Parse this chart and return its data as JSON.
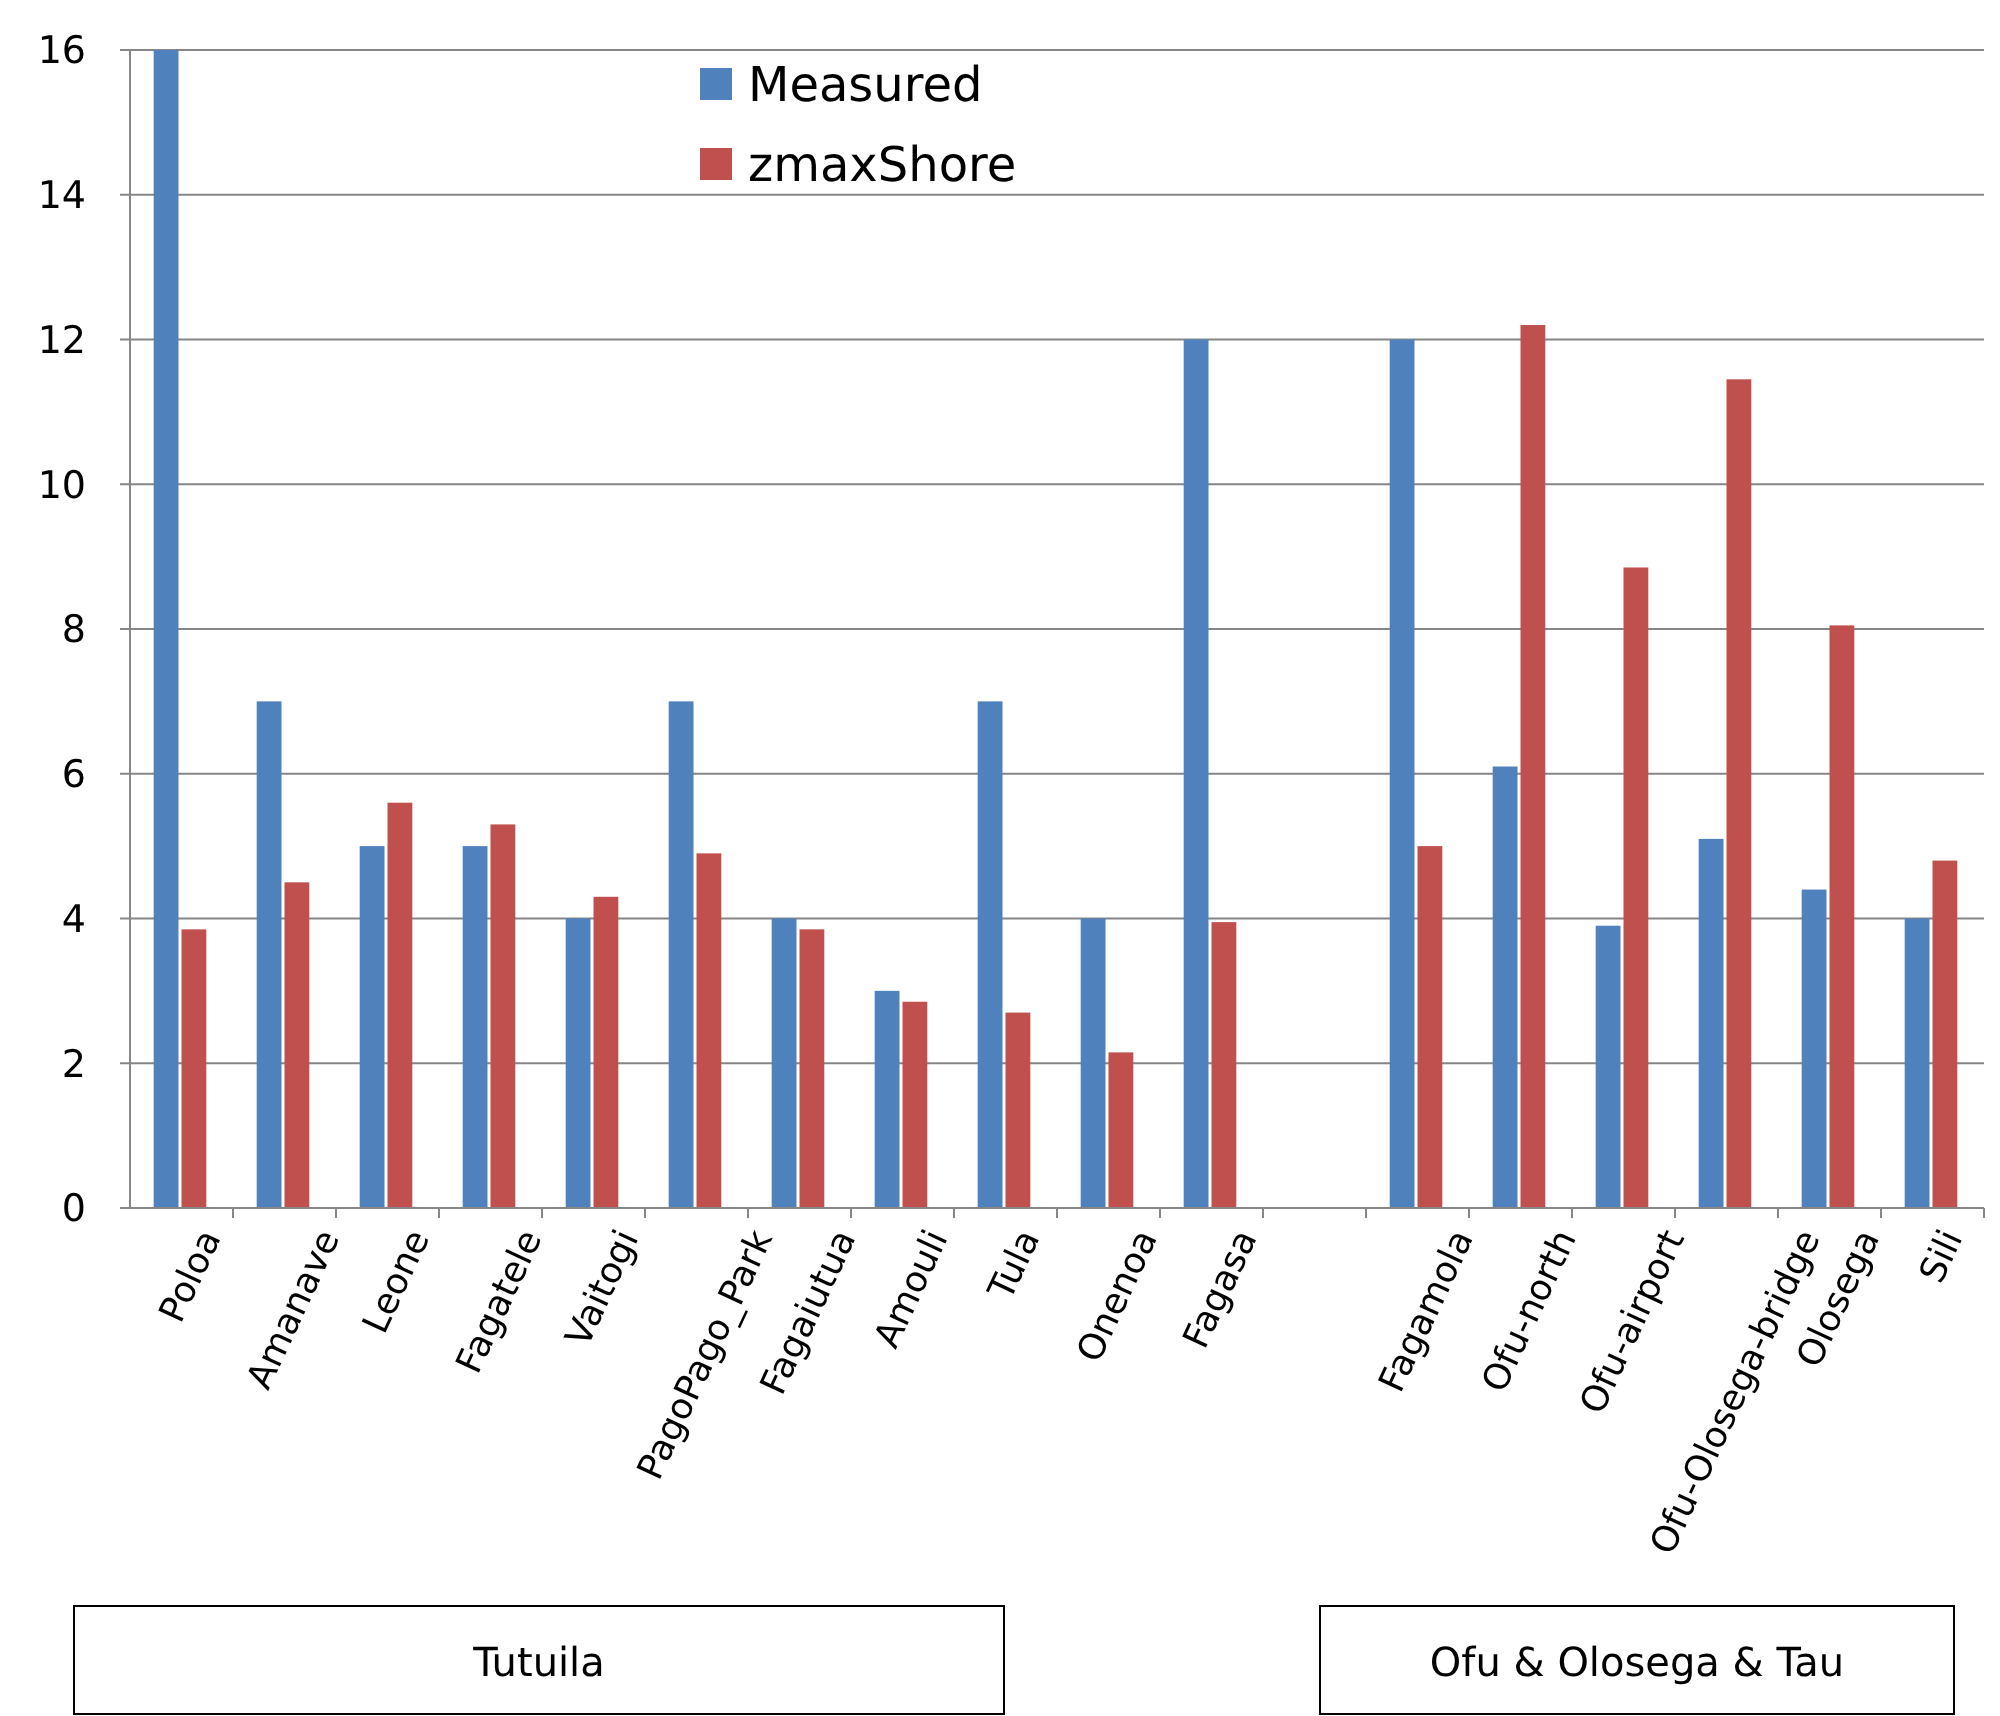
{
  "chart_data": {
    "type": "bar",
    "categories": [
      "Poloa",
      "Amanave",
      "Leone",
      "Fagatele",
      "Vaitogi",
      "PagoPago_Park",
      "Fagaiutua",
      "Amouli",
      "Tula",
      "Onenoa",
      "Fagasa",
      null,
      "Fagamola",
      "Ofu-north",
      "Ofu-airport",
      "Ofu-Olosega-bridge",
      "Olosega",
      "Sili"
    ],
    "series": [
      {
        "name": "Measured",
        "color": "#4f81bd",
        "values": [
          16,
          7,
          5,
          5,
          4,
          7,
          4,
          3,
          7,
          4,
          12,
          null,
          12,
          6.1,
          3.9,
          5.1,
          4.4,
          4
        ]
      },
      {
        "name": "zmaxShore",
        "color": "#c0504d",
        "values": [
          3.85,
          4.5,
          5.6,
          5.3,
          4.3,
          4.9,
          3.85,
          2.85,
          2.7,
          2.15,
          3.95,
          null,
          5,
          12.2,
          8.85,
          11.45,
          8.05,
          4.8
        ]
      }
    ],
    "ylim": [
      0,
      16
    ],
    "yticks": [
      0,
      2,
      4,
      6,
      8,
      10,
      12,
      14,
      16
    ],
    "grid": "y",
    "legend": "top",
    "annotations": [
      "Tutuila",
      "Ofu & Olosega & Tau"
    ]
  }
}
